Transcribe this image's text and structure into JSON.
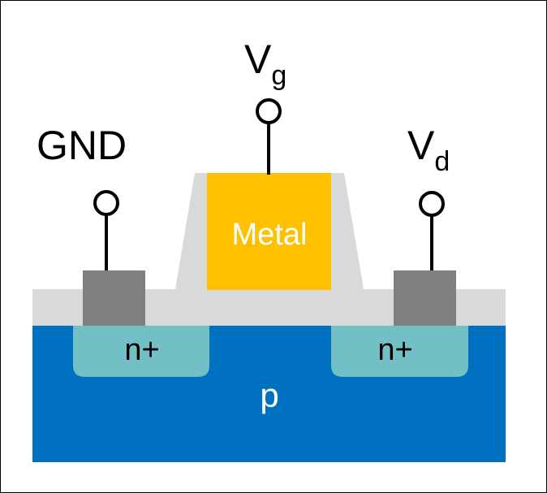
{
  "diagram": {
    "colors": {
      "substrate": "#0070C0",
      "oxide": "#D9D9D9",
      "n_region": "#72BFC5",
      "contact": "#808080",
      "gate": "#FFC000",
      "wire": "#000000",
      "text_dark": "#000000",
      "text_light": "#FFFFFF"
    },
    "terminals": {
      "gnd": "GND",
      "gate_main": "V",
      "gate_sub": "g",
      "drain_main": "V",
      "drain_sub": "d"
    },
    "regions": {
      "gate": "Metal",
      "source": "n+",
      "drain": "n+",
      "substrate": "p"
    }
  }
}
